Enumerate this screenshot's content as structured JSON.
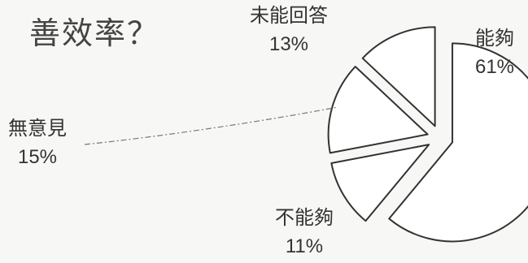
{
  "title": "善效率？",
  "chart_data": {
    "type": "pie",
    "title": "善效率？",
    "slices": [
      {
        "label": "能夠",
        "value": 61,
        "value_label": "61%"
      },
      {
        "label": "不能夠",
        "value": 11,
        "value_label": "11%"
      },
      {
        "label": "無意見",
        "value": 15,
        "value_label": "15%"
      },
      {
        "label": "未能回答",
        "value": 13,
        "value_label": "13%"
      }
    ],
    "exploded": true,
    "start_angle_deg": 0,
    "direction": "clockwise",
    "fill": "#ffffff",
    "stroke": "#333333",
    "background": "#f7f7f5"
  }
}
